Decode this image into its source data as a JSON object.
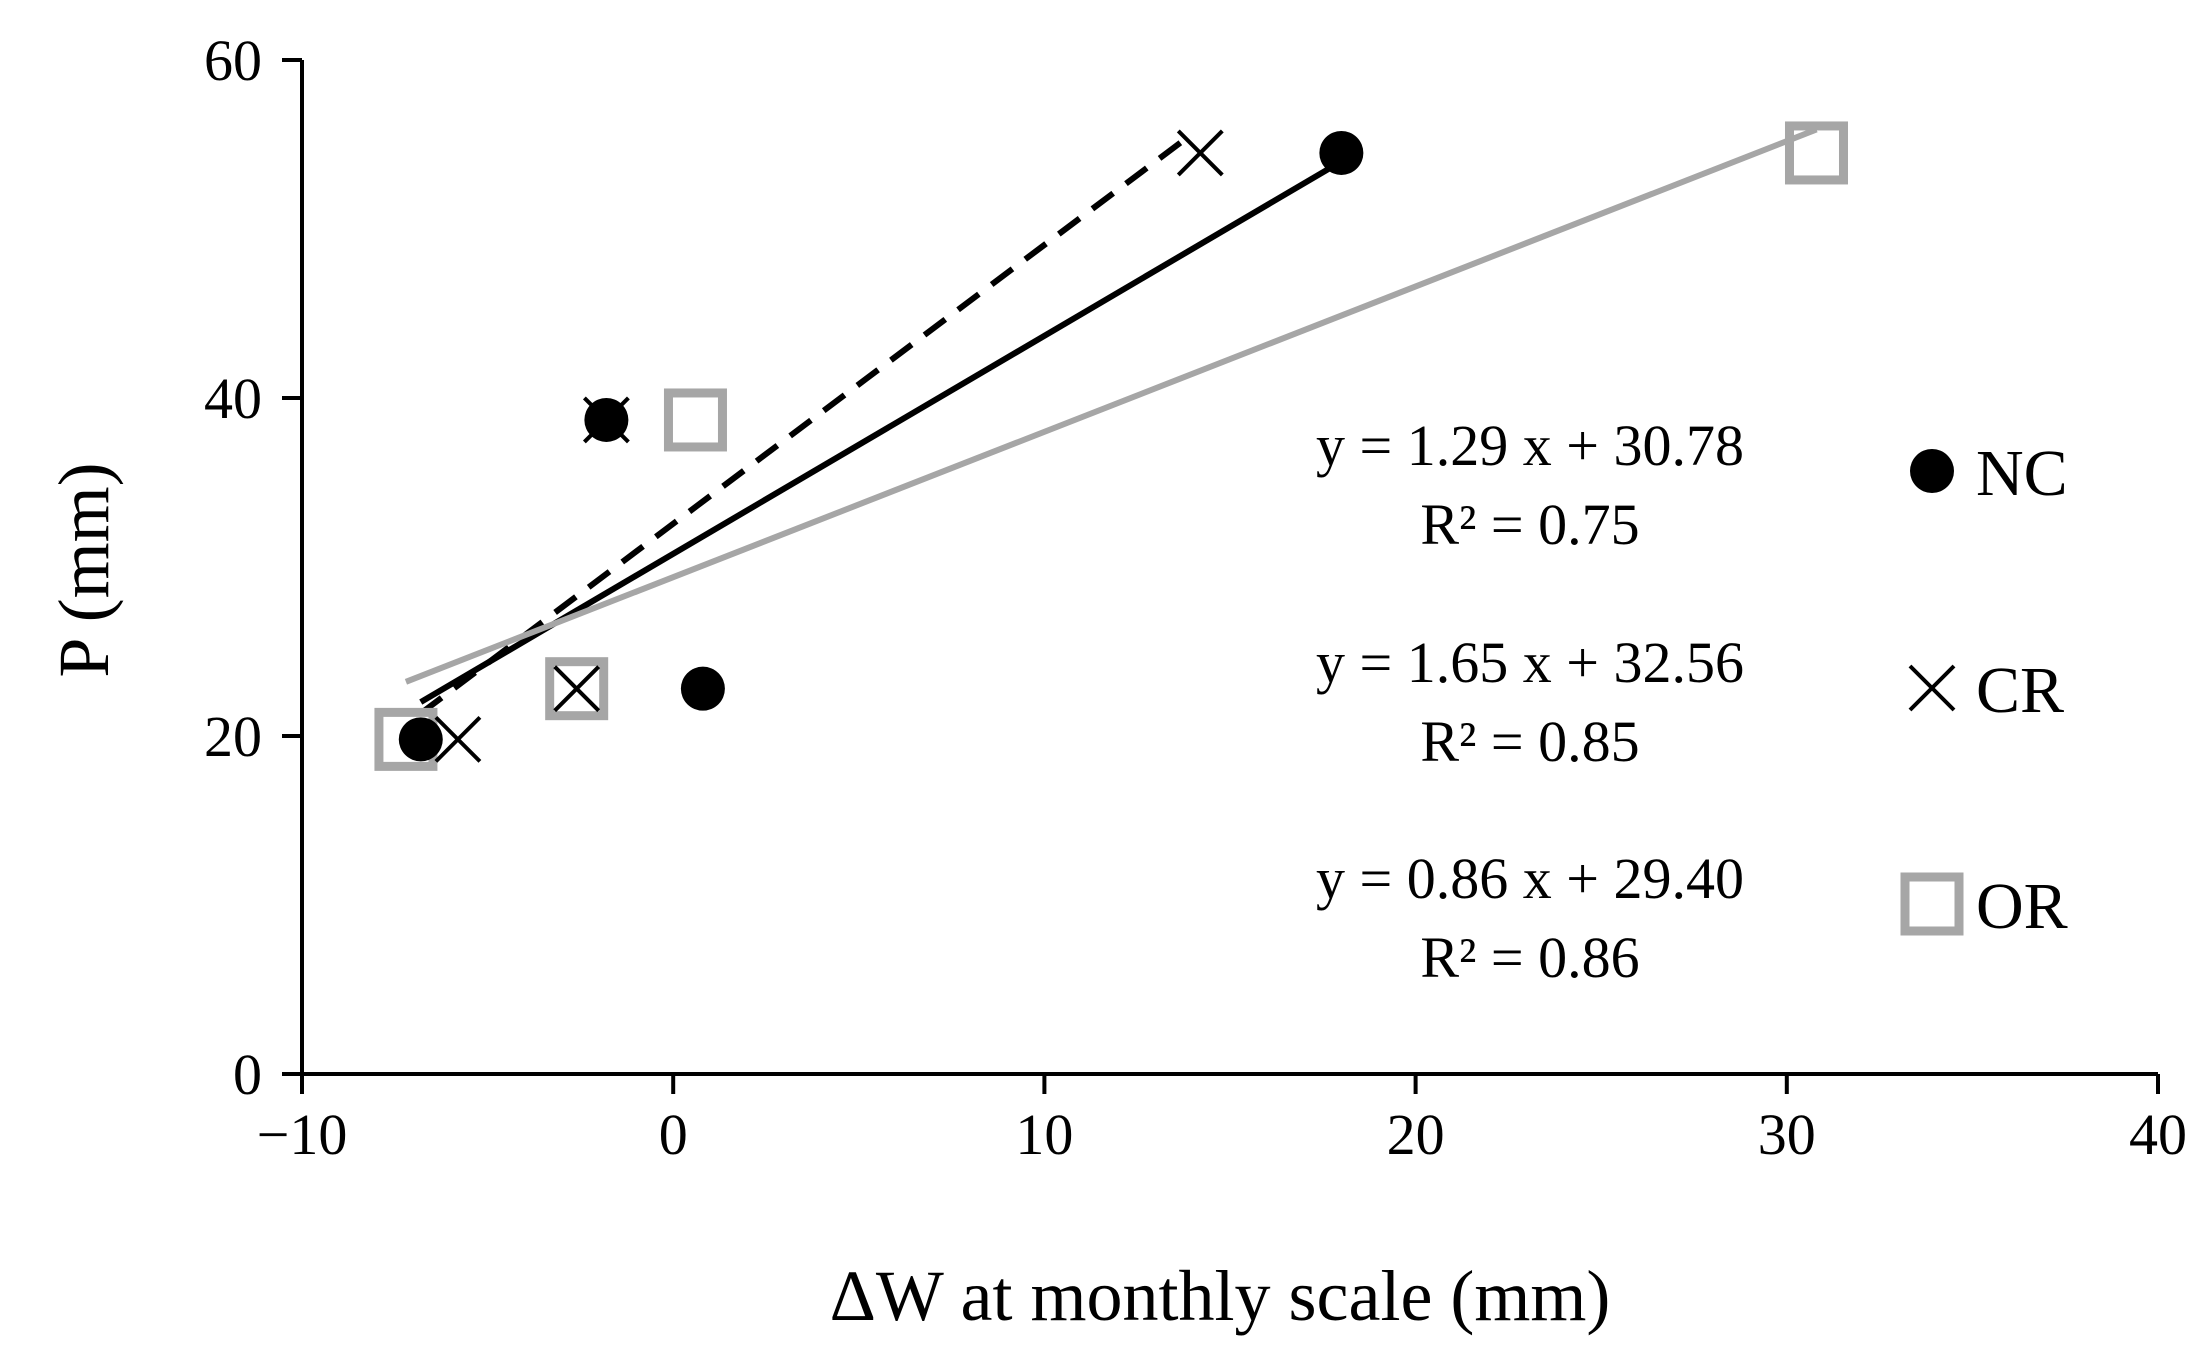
{
  "chart_data": {
    "type": "scatter",
    "title": "",
    "xlabel": "ΔW at monthly scale (mm)",
    "ylabel": "P (mm)",
    "xlim": [
      -10,
      40
    ],
    "ylim": [
      0,
      60
    ],
    "xticks": [
      -10,
      0,
      10,
      20,
      30,
      40
    ],
    "xtick_labels": [
      "−10",
      "0",
      "10",
      "20",
      "30",
      "40"
    ],
    "yticks": [
      0,
      20,
      40,
      60
    ],
    "ytick_labels": [
      "0",
      "20",
      "40",
      "60"
    ],
    "grid": false,
    "legend_position": "right",
    "series": [
      {
        "name": "NC",
        "marker": "circle",
        "color": "#000000",
        "points": [
          [
            -6.8,
            19.8
          ],
          [
            -1.8,
            38.7
          ],
          [
            0.8,
            22.8
          ],
          [
            18.0,
            54.5
          ]
        ],
        "trendline": {
          "x": [
            -6.8,
            18.0
          ],
          "slope": 1.29,
          "intercept": 30.78,
          "style": "solid",
          "color": "#000000"
        },
        "equation": "y = 1.29 x + 30.78",
        "r2": "R² = 0.75"
      },
      {
        "name": "CR",
        "marker": "x",
        "color": "#000000",
        "points": [
          [
            -5.8,
            19.8
          ],
          [
            -1.8,
            38.7
          ],
          [
            -2.6,
            22.8
          ],
          [
            14.2,
            54.5
          ]
        ],
        "trendline": {
          "x": [
            -6.8,
            14.0
          ],
          "slope": 1.65,
          "intercept": 32.56,
          "style": "dashed",
          "color": "#000000"
        },
        "equation": "y = 1.65 x + 32.56",
        "r2": "R² = 0.85"
      },
      {
        "name": "OR",
        "marker": "square",
        "color": "#a6a6a6",
        "points": [
          [
            -7.2,
            19.8
          ],
          [
            0.6,
            38.7
          ],
          [
            -2.6,
            22.8
          ],
          [
            30.8,
            54.5
          ]
        ],
        "trendline": {
          "x": [
            -7.2,
            30.8
          ],
          "slope": 0.86,
          "intercept": 29.4,
          "style": "solid",
          "color": "#a6a6a6"
        },
        "equation": "y = 0.86 x + 29.40",
        "r2": "R² = 0.86"
      }
    ]
  }
}
